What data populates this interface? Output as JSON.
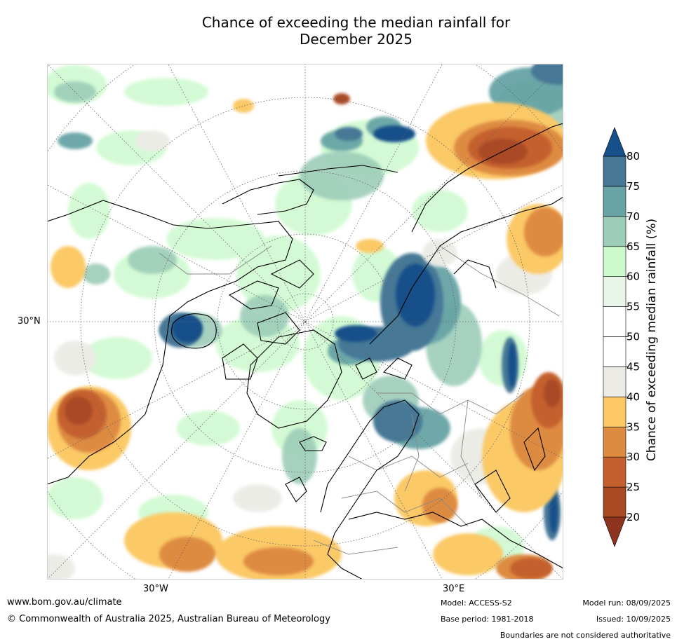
{
  "title": {
    "line1": "Chance of exceeding the median rainfall for",
    "line2": "December 2025"
  },
  "map": {
    "projection": "north-polar-stereographic",
    "region": "Northern Hemisphere",
    "graticule_labels": {
      "left_lat": "30°N",
      "bottom_lon_left": "30°W",
      "bottom_lon_right": "30°E"
    },
    "notable_regions": [
      {
        "name": "wet-anomaly-siberia",
        "category": "75-80"
      },
      {
        "name": "wet-anomaly-hudson-bay",
        "category": "75-80"
      },
      {
        "name": "wet-anomaly-norwegian-sea",
        "category": "70-75"
      },
      {
        "name": "dry-anomaly-north-pacific",
        "category": "20-25"
      },
      {
        "name": "dry-anomaly-middle-east",
        "category": "25-30"
      },
      {
        "name": "dry-anomaly-atlantic-africa",
        "category": "30-35"
      }
    ],
    "colors": {
      "ocean_background": "#ffffff",
      "coastline": "#000000",
      "borders": "#888888",
      "graticule": "#666666"
    }
  },
  "colorbar": {
    "label": "Chance of exceeding median rainfall (%)",
    "ticks": [
      "20",
      "25",
      "30",
      "35",
      "40",
      "45",
      "50",
      "55",
      "60",
      "65",
      "70",
      "75",
      "80"
    ],
    "bins": [
      {
        "range": "20-25",
        "color": "#a94a25"
      },
      {
        "range": "25-30",
        "color": "#c4602f"
      },
      {
        "range": "30-35",
        "color": "#de8b42"
      },
      {
        "range": "35-40",
        "color": "#fbc966"
      },
      {
        "range": "40-45",
        "color": "#ecebe6"
      },
      {
        "range": "45-50",
        "color": "#ffffff"
      },
      {
        "range": "50-55",
        "color": "#ffffff"
      },
      {
        "range": "55-60",
        "color": "#e8f5e8"
      },
      {
        "range": "60-65",
        "color": "#ccfacd"
      },
      {
        "range": "65-70",
        "color": "#9dcdb9"
      },
      {
        "range": "70-75",
        "color": "#68a4a6"
      },
      {
        "range": "75-80",
        "color": "#467896"
      }
    ],
    "under_color": "#8e331d",
    "over_color": "#16508a"
  },
  "footer": {
    "url": "www.bom.gov.au/climate",
    "copyright": "© Commonwealth of Australia 2025, Australian Bureau of Meteorology",
    "model": "Model: ACCESS-S2",
    "base_period": "Base period: 1981-2018",
    "model_run": "Model run: 08/09/2025",
    "issued": "Issued: 10/09/2025",
    "disclaimer": "Boundaries are not considered authoritative"
  }
}
